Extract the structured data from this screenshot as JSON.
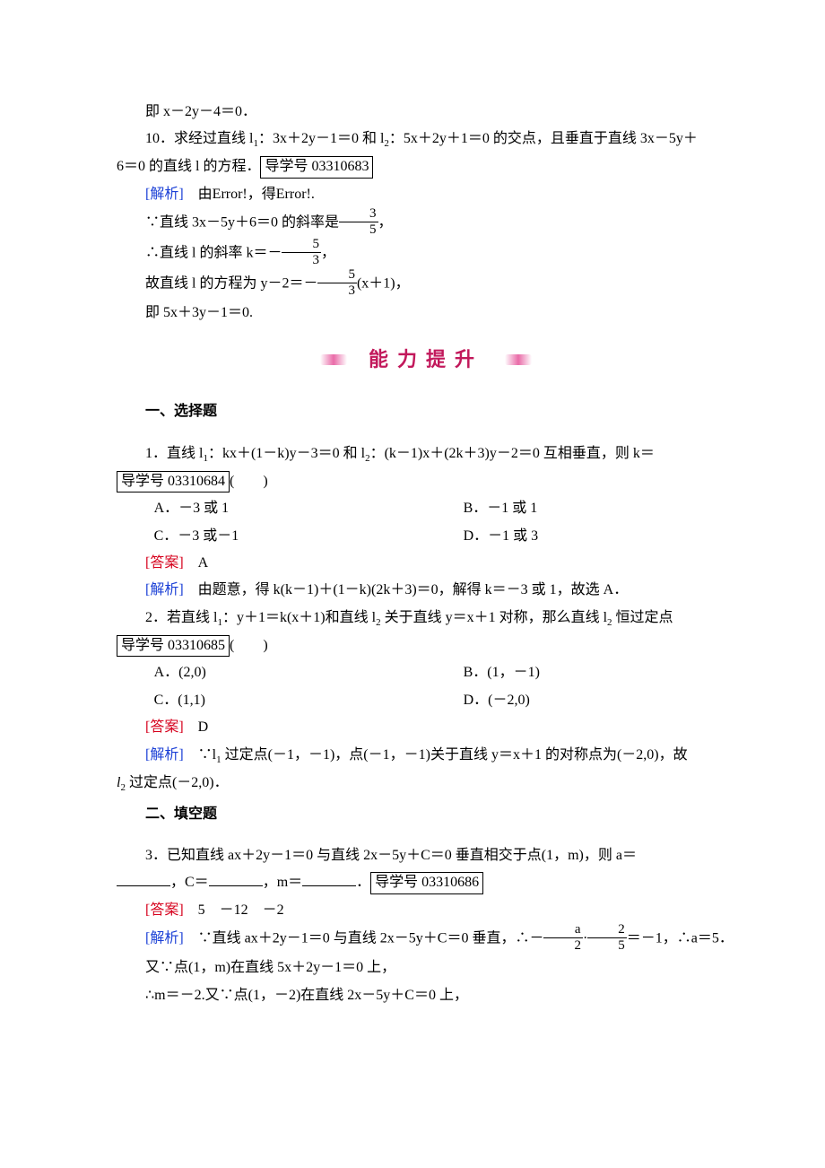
{
  "top": {
    "l1": "即 x－2y－4＝0．",
    "q10_a": "10．求经过直线 l",
    "q10_b": "：3x＋2y－1＝0 和 l",
    "q10_c": "：5x＋2y＋1＝0 的交点，且垂直于直线 3x－5y＋",
    "q10_d": "6＝0 的直线 l 的方程．",
    "code10": "导学号 03310683",
    "ana_label": "[解析]",
    "ana_text": "　由Error!，得Error!.",
    "s1_a": "∵直线 3x－5y＋6＝0 的斜率是",
    "s1_num": "3",
    "s1_den": "5",
    "s1_tail": "，",
    "s2_a": "∴直线 l 的斜率 k＝－",
    "s2_num": "5",
    "s2_den": "3",
    "s2_tail": "，",
    "s3_a": "故直线 l 的方程为 y－2＝－",
    "s3_num": "5",
    "s3_den": "3",
    "s3_tail": "(x＋1)，",
    "s4": "即 5x＋3y－1＝0."
  },
  "banner": "能力提升",
  "sec1": {
    "head": "一、选择题",
    "q1_a": "1．直线 l",
    "q1_b": "：kx＋(1－k)y－3＝0 和 l",
    "q1_c": "：(k－1)x＋(2k＋3)y－2＝0 互相垂直，则 k＝",
    "code1": "导学号 03310684",
    "paren": "(　　)",
    "optA": "A．－3 或 1",
    "optB": "B．－1 或 1",
    "optC": "C．－3 或－1",
    "optD": "D．－1 或 3",
    "ans_label": "[答案]",
    "ans": "　A",
    "ana_label": "[解析]",
    "ana": "　由题意，得 k(k－1)＋(1－k)(2k＋3)＝0，解得 k＝－3 或 1，故选 A．",
    "q2_a": "2．若直线 l",
    "q2_b": "：y＋1＝k(x＋1)和直线 l",
    "q2_c": " 关于直线 y＝x＋1 对称，那么直线 l",
    "q2_d": " 恒过定点",
    "code2": "导学号 03310685",
    "opt2A": "A．(2,0)",
    "opt2B": "B．(1，－1)",
    "opt2C": "C．(1,1)",
    "opt2D": "D．(－2,0)",
    "ans2": "　D",
    "ana2_a": "　∵l",
    "ana2_b": " 过定点(－1，－1)，点(－1，－1)关于直线 y＝x＋1 的对称点为(－2,0)，故",
    "ana2_c": "l",
    "ana2_d": " 过定点(－2,0)．"
  },
  "sec2": {
    "head": "二、填空题",
    "q3_a": "3．已知直线 ax＋2y－1＝0 与直线 2x－5y＋C＝0 垂直相交于点(1，m)，则 a＝",
    "q3_b": "，C＝",
    "q3_c": "，m＝",
    "q3_d": "．",
    "code3": "导学号 03310686",
    "ans_label": "[答案]",
    "ans": "　5　－12　－2",
    "ana_label": "[解析]",
    "ana_a": "　∵直线 ax＋2y－1＝0 与直线 2x－5y＋C＝0 垂直，∴－",
    "fa_num": "a",
    "fa_den": "2",
    "dot": "·",
    "fb_num": "2",
    "fb_den": "5",
    "ana_b": "＝－1，∴a＝5．",
    "line2": "又∵点(1，m)在直线 5x＋2y－1＝0 上，",
    "line3": "∴m＝－2.又∵点(1，－2)在直线 2x－5y＋C＝0 上，"
  }
}
